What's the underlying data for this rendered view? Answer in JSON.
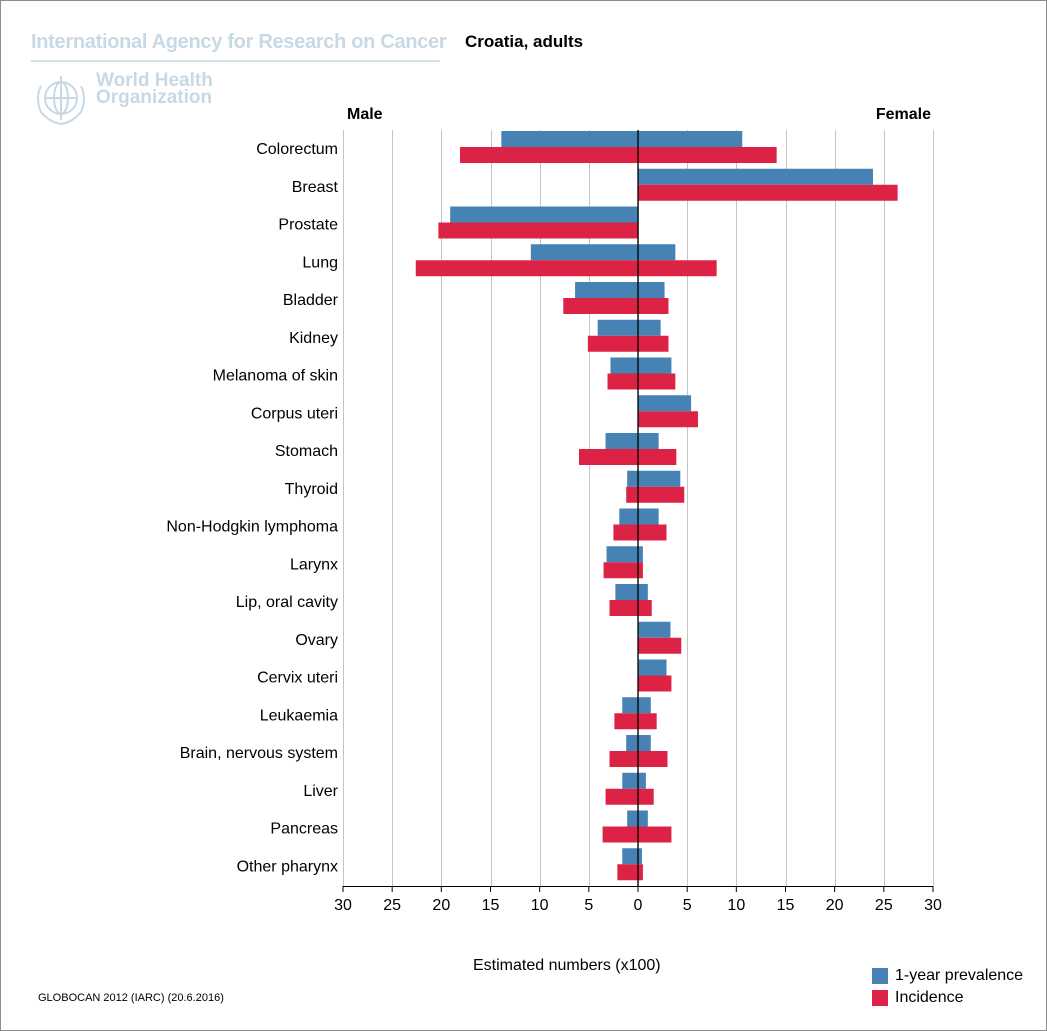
{
  "header": {
    "agency": "International Agency for Research on Cancer",
    "title": "Croatia, adults",
    "who_line1": "World Health",
    "who_line2": "Organization"
  },
  "source": "GLOBOCAN 2012 (IARC) (20.6.2016)",
  "chart_data": {
    "type": "bar",
    "orientation": "horizontal-population-pyramid",
    "left_group_label": "Male",
    "right_group_label": "Female",
    "xlabel": "Estimated numbers (x100)",
    "xlim": [
      -30,
      30
    ],
    "xticks": [
      -30,
      -25,
      -20,
      -15,
      -10,
      -5,
      0,
      5,
      10,
      15,
      20,
      25,
      30
    ],
    "xtick_labels": [
      "30",
      "25",
      "20",
      "15",
      "10",
      "5",
      "0",
      "5",
      "10",
      "15",
      "20",
      "25",
      "30"
    ],
    "grid": "vertical",
    "legend_position": "bottom-right",
    "categories": [
      "Colorectum",
      "Breast",
      "Prostate",
      "Lung",
      "Bladder",
      "Kidney",
      "Melanoma of skin",
      "Corpus uteri",
      "Stomach",
      "Thyroid",
      "Non-Hodgkin lymphoma",
      "Larynx",
      "Lip, oral cavity",
      "Ovary",
      "Cervix uteri",
      "Leukaemia",
      "Brain, nervous system",
      "Liver",
      "Pancreas",
      "Other pharynx"
    ],
    "series": [
      {
        "name": "1-year prevalence",
        "color": "#4682b4",
        "male": [
          13.9,
          0,
          19.1,
          10.9,
          6.4,
          4.1,
          2.8,
          0,
          3.3,
          1.1,
          1.9,
          3.2,
          2.3,
          0,
          0,
          1.6,
          1.2,
          1.6,
          1.1,
          1.6
        ],
        "female": [
          10.6,
          23.9,
          0,
          3.8,
          2.7,
          2.3,
          3.4,
          5.4,
          2.1,
          4.3,
          2.1,
          0.5,
          1.0,
          3.3,
          2.9,
          1.3,
          1.3,
          0.8,
          1.0,
          0.4
        ]
      },
      {
        "name": "Incidence",
        "color": "#dc2346",
        "male": [
          18.1,
          0,
          20.3,
          22.6,
          7.6,
          5.1,
          3.1,
          0,
          6.0,
          1.2,
          2.5,
          3.5,
          2.9,
          0,
          0,
          2.4,
          2.9,
          3.3,
          3.6,
          2.1
        ],
        "female": [
          14.1,
          26.4,
          0,
          8.0,
          3.1,
          3.1,
          3.8,
          6.1,
          3.9,
          4.7,
          2.9,
          0.5,
          1.4,
          4.4,
          3.4,
          1.9,
          3.0,
          1.6,
          3.4,
          0.5
        ]
      }
    ]
  }
}
